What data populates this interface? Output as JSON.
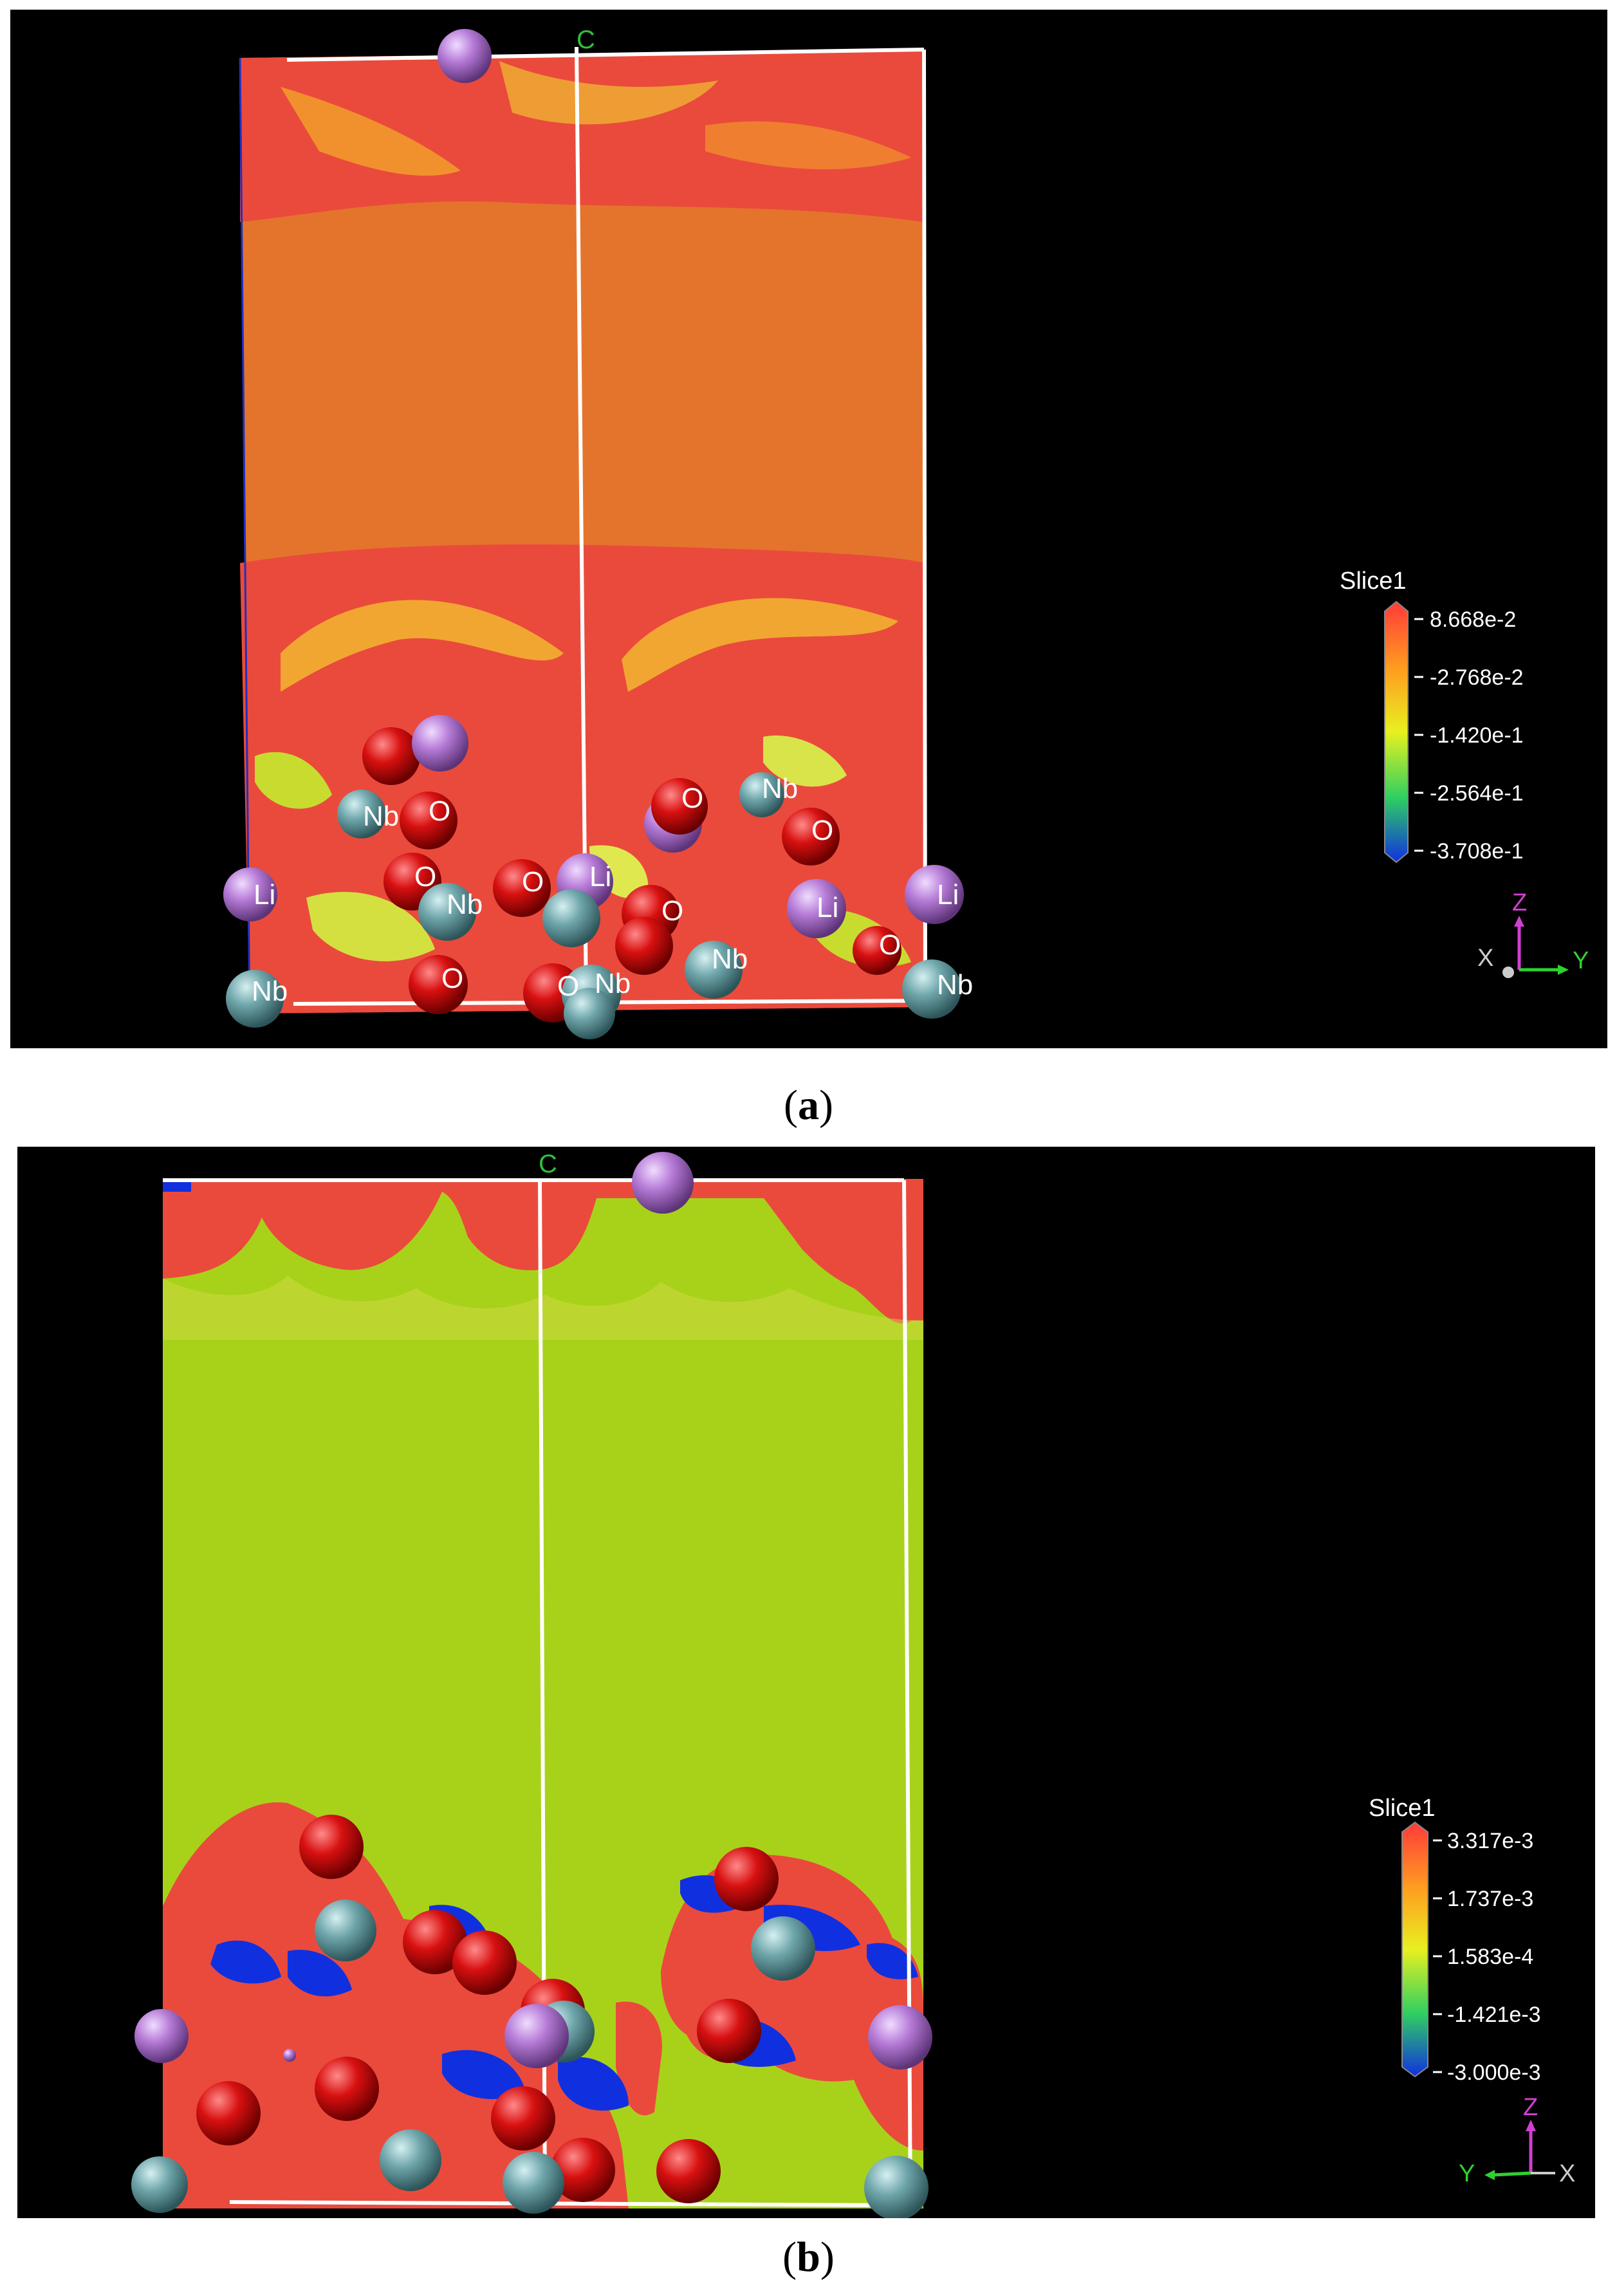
{
  "panels": [
    {
      "id": "a",
      "caption": "a",
      "cell_label": "C",
      "legend": {
        "title": "Slice1",
        "ticks": [
          "8.668e-2",
          "-2.768e-2",
          "-1.420e-1",
          "-2.564e-1",
          "-3.708e-1"
        ]
      },
      "axes": {
        "up": "Z",
        "left": "X",
        "right": "Y"
      },
      "atom_labels": [
        "Li",
        "Nb",
        "O",
        "O",
        "Nb",
        "O",
        "O",
        "Li",
        "Nb",
        "O",
        "O",
        "Li",
        "O",
        "O",
        "Nb",
        "Nb",
        "Nb",
        "O",
        "Li",
        "Nb"
      ]
    },
    {
      "id": "b",
      "caption": "b",
      "cell_label": "C",
      "legend": {
        "title": "Slice1",
        "ticks": [
          "3.317e-3",
          "1.737e-3",
          "1.583e-4",
          "-1.421e-3",
          "-3.000e-3"
        ]
      },
      "axes": {
        "up": "Z",
        "left": "Y",
        "right": "X"
      }
    }
  ],
  "colors": {
    "background": "#000000",
    "map_red": "#ea4a3c",
    "map_orange": "#e4742c",
    "map_yellow_green": "#a8d21a",
    "oxygen": "#d81010",
    "niobium": "#6fa6ab",
    "lithium": "#b57ad6",
    "cell_edges": "#ffffff",
    "axis_z": "#d040d0",
    "axis_y": "#30d030"
  }
}
